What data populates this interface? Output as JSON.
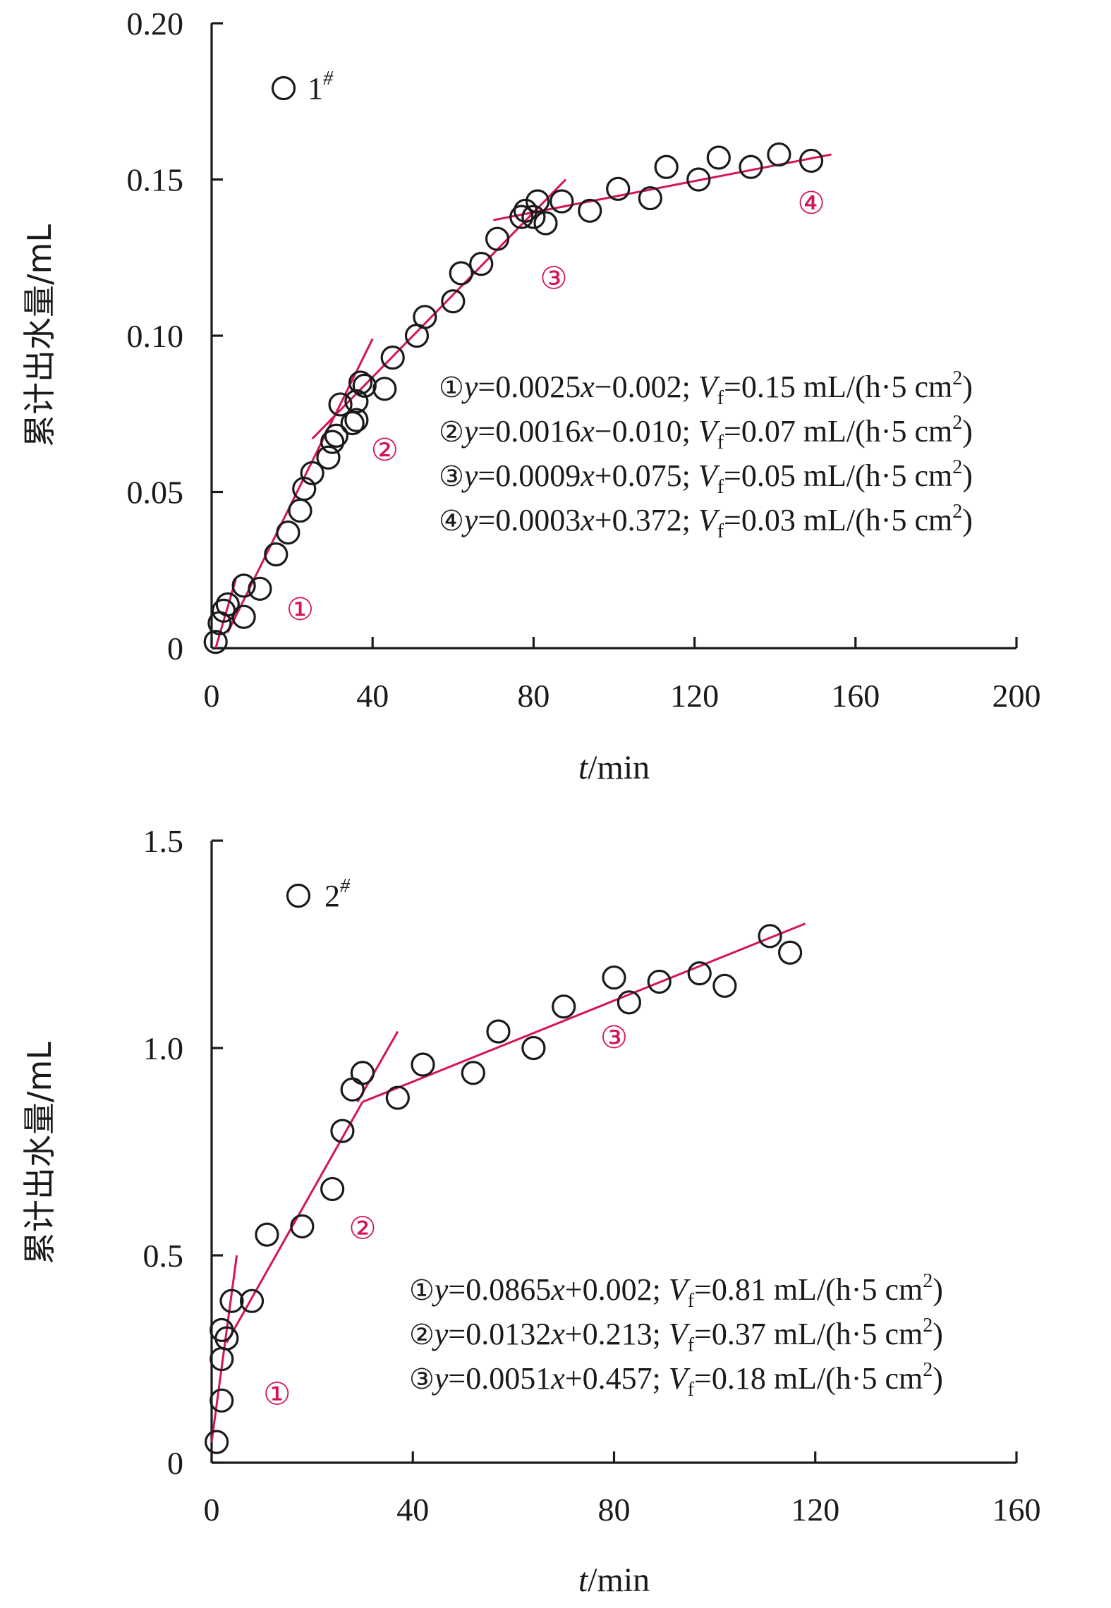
{
  "chart_data": [
    {
      "type": "scatter",
      "title": "",
      "xlabel": "t/min",
      "xlabel_italic": "t",
      "xlabel_rest": "/min",
      "ylabel": "累计出水量/mL",
      "xlim": [
        0,
        200
      ],
      "ylim": [
        0,
        0.2
      ],
      "xticks": [
        0,
        40,
        80,
        120,
        160,
        200
      ],
      "xtick_labels": [
        "0",
        "40",
        "80",
        "120",
        "160",
        "200"
      ],
      "yticks": [
        0,
        0.05,
        0.1,
        0.15,
        0.2
      ],
      "ytick_labels": [
        "0",
        "0.05",
        "0.10",
        "0.15",
        "0.20"
      ],
      "grid": false,
      "legend": {
        "symbol": "circle",
        "label": "1",
        "sup": "#",
        "placement": "top-left"
      },
      "series": [
        {
          "marker": "circle",
          "x": [
            1,
            2,
            3,
            4,
            8,
            8,
            12,
            16,
            19,
            22,
            23,
            25,
            29,
            30,
            31,
            32,
            35,
            36,
            36,
            37,
            38,
            43,
            45,
            51,
            53,
            60,
            62,
            67,
            71,
            77,
            78,
            80,
            81,
            83,
            87,
            94,
            101,
            109,
            113,
            121,
            126,
            134,
            141,
            149
          ],
          "y": [
            0.002,
            0.008,
            0.012,
            0.014,
            0.01,
            0.02,
            0.019,
            0.03,
            0.037,
            0.044,
            0.051,
            0.056,
            0.061,
            0.066,
            0.068,
            0.078,
            0.072,
            0.073,
            0.079,
            0.085,
            0.084,
            0.083,
            0.093,
            0.1,
            0.106,
            0.111,
            0.12,
            0.123,
            0.131,
            0.138,
            0.14,
            0.138,
            0.143,
            0.136,
            0.143,
            0.14,
            0.147,
            0.144,
            0.154,
            0.15,
            0.157,
            0.154,
            0.158,
            0.156
          ]
        }
      ],
      "fit_lines": [
        {
          "x": [
            1,
            6
          ],
          "y": [
            0.0,
            0.022
          ]
        },
        {
          "x": [
            4,
            40
          ],
          "y": [
            0.005,
            0.099
          ]
        },
        {
          "x": [
            25,
            88
          ],
          "y": [
            0.067,
            0.15
          ]
        },
        {
          "x": [
            70,
            154
          ],
          "y": [
            0.137,
            0.158
          ]
        }
      ],
      "segment_labels": [
        {
          "text": "①",
          "x": 22,
          "y": 0.009
        },
        {
          "text": "②",
          "x": 43,
          "y": 0.06
        },
        {
          "text": "③",
          "x": 85,
          "y": 0.115
        },
        {
          "text": "④",
          "x": 149,
          "y": 0.139
        }
      ],
      "equations": [
        {
          "mark": "①",
          "y": "y",
          "rhs": "=0.0025",
          "x": "x",
          "tail": "−0.002; ",
          "V": "V",
          "sub": "f",
          "val": "=0.15 mL/(h·5 cm",
          "sup": "2",
          "close": ")"
        },
        {
          "mark": "②",
          "y": "y",
          "rhs": "=0.0016",
          "x": "x",
          "tail": "−0.010; ",
          "V": "V",
          "sub": "f",
          "val": "=0.07 mL/(h·5 cm",
          "sup": "2",
          "close": ")"
        },
        {
          "mark": "③",
          "y": "y",
          "rhs": "=0.0009",
          "x": "x",
          "tail": "+0.075; ",
          "V": "V",
          "sub": "f",
          "val": "=0.05 mL/(h·5 cm",
          "sup": "2",
          "close": ")"
        },
        {
          "mark": "④",
          "y": "y",
          "rhs": "=0.0003",
          "x": "x",
          "tail": "+0.372; ",
          "V": "V",
          "sub": "f",
          "val": "=0.03 mL/(h·5 cm",
          "sup": "2",
          "close": ")"
        }
      ]
    },
    {
      "type": "scatter",
      "title": "",
      "xlabel": "t/min",
      "xlabel_italic": "t",
      "xlabel_rest": "/min",
      "ylabel": "累计出水量/mL",
      "xlim": [
        0,
        160
      ],
      "ylim": [
        0,
        1.5
      ],
      "xticks": [
        0,
        40,
        80,
        120,
        160
      ],
      "xtick_labels": [
        "0",
        "40",
        "80",
        "120",
        "160"
      ],
      "yticks": [
        0,
        0.5,
        1.0,
        1.5
      ],
      "ytick_labels": [
        "0",
        "0.5",
        "1.0",
        "1.5"
      ],
      "grid": false,
      "legend": {
        "symbol": "circle",
        "label": "2",
        "sup": "#",
        "placement": "top-left"
      },
      "series": [
        {
          "marker": "circle",
          "x": [
            1,
            2,
            2,
            2,
            3,
            4,
            8,
            11,
            18,
            24,
            26,
            28,
            30,
            37,
            42,
            52,
            57,
            64,
            70,
            80,
            83,
            89,
            97,
            102,
            111,
            115
          ],
          "y": [
            0.05,
            0.15,
            0.25,
            0.32,
            0.3,
            0.39,
            0.39,
            0.55,
            0.57,
            0.66,
            0.8,
            0.9,
            0.94,
            0.88,
            0.96,
            0.94,
            1.04,
            1.0,
            1.1,
            1.17,
            1.11,
            1.16,
            1.18,
            1.15,
            1.27,
            1.23
          ]
        }
      ],
      "fit_lines": [
        {
          "x": [
            0,
            5
          ],
          "y": [
            0.05,
            0.5
          ]
        },
        {
          "x": [
            3,
            30
          ],
          "y": [
            0.29,
            0.87
          ]
        },
        {
          "x": [
            29,
            37
          ],
          "y": [
            0.87,
            1.04
          ]
        },
        {
          "x": [
            30,
            118
          ],
          "y": [
            0.87,
            1.3
          ]
        }
      ],
      "segment_labels": [
        {
          "text": "①",
          "x": 13,
          "y": 0.14
        },
        {
          "text": "②",
          "x": 30,
          "y": 0.54
        },
        {
          "text": "③",
          "x": 80,
          "y": 1.0
        }
      ],
      "equations": [
        {
          "mark": "①",
          "y": "y",
          "rhs": "=0.0865",
          "x": "x",
          "tail": "+0.002; ",
          "V": "V",
          "sub": "f",
          "val": "=0.81 mL/(h·5 cm",
          "sup": "2",
          "close": ")"
        },
        {
          "mark": "②",
          "y": "y",
          "rhs": "=0.0132",
          "x": "x",
          "tail": "+0.213; ",
          "V": "V",
          "sub": "f",
          "val": "=0.37 mL/(h·5 cm",
          "sup": "2",
          "close": ")"
        },
        {
          "mark": "③",
          "y": "y",
          "rhs": "=0.0051",
          "x": "x",
          "tail": "+0.457; ",
          "V": "V",
          "sub": "f",
          "val": "=0.18 mL/(h·5 cm",
          "sup": "2",
          "close": ")"
        }
      ]
    }
  ],
  "colors": {
    "axis": "#1a1a1a",
    "fit_line": "#d4145a",
    "segment_label": "#d4145a"
  }
}
